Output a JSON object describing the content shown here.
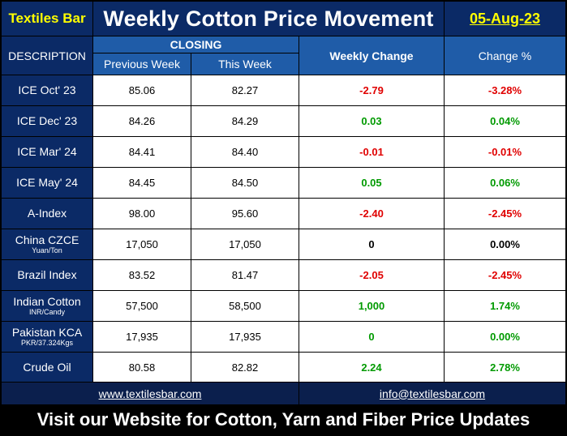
{
  "header": {
    "brand": "Textiles Bar",
    "title": "Weekly Cotton Price Movement",
    "date": "05-Aug-23"
  },
  "columns": {
    "description": "DESCRIPTION",
    "closing": "CLOSING",
    "previous_week": "Previous Week",
    "this_week": "This Week",
    "weekly_change": "Weekly Change",
    "change_pct": "Change %"
  },
  "colors": {
    "negative": "#e00000",
    "positive": "#009a00",
    "neutral": "#000000"
  },
  "rows": [
    {
      "name": "ICE Oct' 23",
      "sub": "",
      "prev": "85.06",
      "curr": "82.27",
      "change": "-2.79",
      "pct": "-3.28%",
      "dir": "negative"
    },
    {
      "name": "ICE Dec' 23",
      "sub": "",
      "prev": "84.26",
      "curr": "84.29",
      "change": "0.03",
      "pct": "0.04%",
      "dir": "positive"
    },
    {
      "name": "ICE Mar' 24",
      "sub": "",
      "prev": "84.41",
      "curr": "84.40",
      "change": "-0.01",
      "pct": "-0.01%",
      "dir": "negative"
    },
    {
      "name": "ICE May' 24",
      "sub": "",
      "prev": "84.45",
      "curr": "84.50",
      "change": "0.05",
      "pct": "0.06%",
      "dir": "positive"
    },
    {
      "name": "A-Index",
      "sub": "",
      "prev": "98.00",
      "curr": "95.60",
      "change": "-2.40",
      "pct": "-2.45%",
      "dir": "negative"
    },
    {
      "name": "China CZCE",
      "sub": "Yuan/Ton",
      "prev": "17,050",
      "curr": "17,050",
      "change": "0",
      "pct": "0.00%",
      "dir": "neutral"
    },
    {
      "name": "Brazil Index",
      "sub": "",
      "prev": "83.52",
      "curr": "81.47",
      "change": "-2.05",
      "pct": "-2.45%",
      "dir": "negative"
    },
    {
      "name": "Indian Cotton",
      "sub": "INR/Candy",
      "prev": "57,500",
      "curr": "58,500",
      "change": "1,000",
      "pct": "1.74%",
      "dir": "positive"
    },
    {
      "name": "Pakistan  KCA",
      "sub": "PKR/37.324Kgs",
      "prev": "17,935",
      "curr": "17,935",
      "change": "0",
      "pct": "0.00%",
      "dir": "positive"
    },
    {
      "name": "Crude Oil",
      "sub": "",
      "prev": "80.58",
      "curr": "82.82",
      "change": "2.24",
      "pct": "2.78%",
      "dir": "positive"
    }
  ],
  "footer": {
    "website": "www.textilesbar.com",
    "email": "info@textilesbar.com",
    "banner": "Visit our Website for Cotton, Yarn and Fiber Price Updates"
  }
}
